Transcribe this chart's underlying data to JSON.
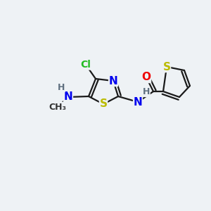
{
  "background_color": "#eef2f5",
  "atom_colors": {
    "C": "#1a1a1a",
    "N": "#0000ee",
    "S": "#bbbb00",
    "O": "#ee0000",
    "Cl": "#22bb22",
    "H": "#607080"
  },
  "figsize": [
    3.0,
    3.0
  ],
  "dpi": 100
}
